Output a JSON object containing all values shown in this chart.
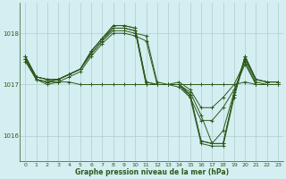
{
  "title": "Graphe pression niveau de la mer (hPa)",
  "bg_color": "#d4eef1",
  "grid_color": "#b0cccc",
  "line_color": "#2d5a1b",
  "xlim": [
    -0.5,
    23.5
  ],
  "ylim": [
    1015.5,
    1018.6
  ],
  "yticks": [
    1016,
    1017,
    1018
  ],
  "xticks": [
    0,
    1,
    2,
    3,
    4,
    5,
    6,
    7,
    8,
    9,
    10,
    11,
    12,
    13,
    14,
    15,
    16,
    17,
    18,
    19,
    20,
    21,
    22,
    23
  ],
  "series": [
    [
      1017.55,
      1017.1,
      1017.05,
      1017.05,
      1017.05,
      1017.0,
      1017.0,
      1017.0,
      1017.0,
      1017.0,
      1017.0,
      1017.0,
      1017.0,
      1017.0,
      1017.0,
      1017.0,
      1017.0,
      1017.0,
      1017.0,
      1017.0,
      1017.05,
      1017.0,
      1017.0,
      1017.0
    ],
    [
      1017.5,
      1017.1,
      1017.05,
      1017.1,
      1017.2,
      1017.3,
      1017.6,
      1017.85,
      1018.05,
      1018.05,
      1018.0,
      1017.95,
      1017.05,
      1017.0,
      1017.05,
      1016.9,
      1016.55,
      1016.55,
      1016.75,
      1017.0,
      1017.45,
      1017.0,
      1017.0,
      1017.0
    ],
    [
      1017.45,
      1017.1,
      1017.0,
      1017.05,
      1017.15,
      1017.25,
      1017.55,
      1017.8,
      1018.0,
      1018.0,
      1017.95,
      1017.85,
      1017.0,
      1017.0,
      1016.95,
      1016.75,
      1016.3,
      1016.3,
      1016.55,
      1016.9,
      1017.4,
      1017.0,
      1017.0,
      1017.0
    ],
    [
      1017.5,
      1017.15,
      1017.1,
      1017.1,
      1017.2,
      1017.3,
      1017.65,
      1017.9,
      1018.1,
      1018.1,
      1018.05,
      1017.0,
      1017.0,
      1017.0,
      1017.0,
      1016.85,
      1016.4,
      1015.85,
      1016.1,
      1016.85,
      1017.5,
      1017.1,
      1017.05,
      1017.05
    ],
    [
      1017.55,
      1017.15,
      1017.1,
      1017.1,
      1017.2,
      1017.3,
      1017.65,
      1017.9,
      1018.15,
      1018.15,
      1018.1,
      1017.05,
      1017.0,
      1017.0,
      1017.0,
      1016.8,
      1015.9,
      1015.85,
      1015.85,
      1016.8,
      1017.55,
      1017.1,
      1017.05,
      1017.05
    ],
    [
      1017.55,
      1017.15,
      1017.1,
      1017.1,
      1017.2,
      1017.3,
      1017.65,
      1017.9,
      1018.15,
      1018.15,
      1018.1,
      1017.05,
      1017.0,
      1017.0,
      1017.0,
      1016.8,
      1015.9,
      1015.85,
      1015.85,
      1016.8,
      1017.55,
      1017.1,
      1017.05,
      1017.05
    ],
    [
      1017.5,
      1017.1,
      1017.05,
      1017.1,
      1017.2,
      1017.3,
      1017.6,
      1017.85,
      1018.1,
      1018.1,
      1018.05,
      1017.0,
      1017.0,
      1017.0,
      1017.0,
      1016.75,
      1015.85,
      1015.8,
      1015.8,
      1016.75,
      1017.5,
      1017.05,
      1017.0,
      1017.0
    ]
  ]
}
